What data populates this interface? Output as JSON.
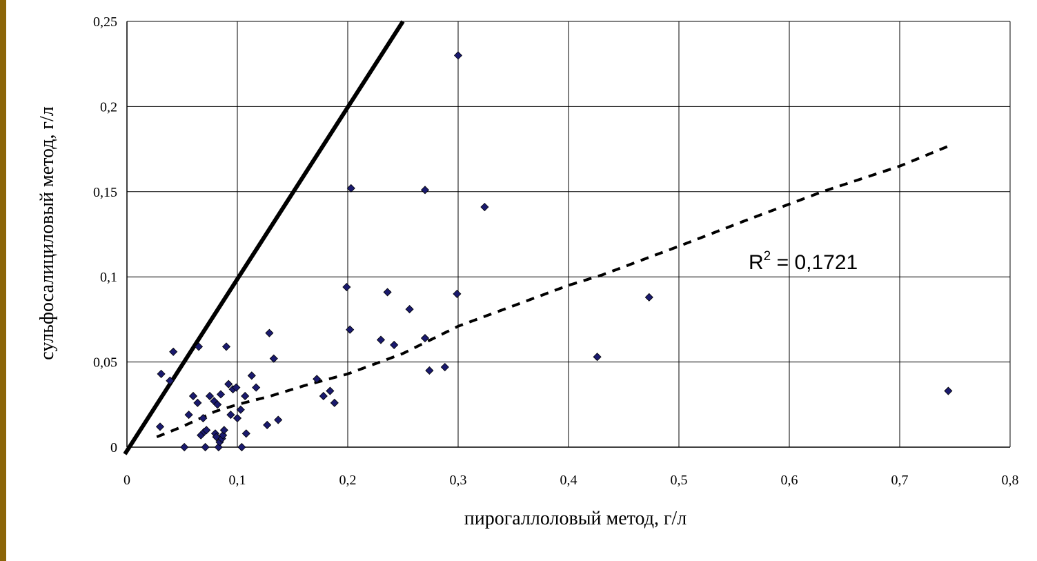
{
  "chart_data": {
    "type": "scatter",
    "title": "",
    "xlabel": "пирогаллоловый метод, г/л",
    "ylabel": "сульфосалициловый метод, г/л",
    "xlim": [
      0,
      0.8
    ],
    "ylim": [
      0,
      0.25
    ],
    "x_ticks": [
      "0",
      "0,1",
      "0,2",
      "0,3",
      "0,4",
      "0,5",
      "0,6",
      "0,7",
      "0,8"
    ],
    "y_ticks": [
      "0",
      "0,05",
      "0,1",
      "0,15",
      "0,2",
      "0,25"
    ],
    "grid": true,
    "marker": "diamond",
    "marker_color": "#1a1a6e",
    "points": [
      [
        0.03,
        0.012
      ],
      [
        0.031,
        0.043
      ],
      [
        0.039,
        0.039
      ],
      [
        0.042,
        0.056
      ],
      [
        0.052,
        0.0
      ],
      [
        0.056,
        0.019
      ],
      [
        0.06,
        0.03
      ],
      [
        0.064,
        0.026
      ],
      [
        0.065,
        0.059
      ],
      [
        0.067,
        0.007
      ],
      [
        0.069,
        0.017
      ],
      [
        0.07,
        0.009
      ],
      [
        0.071,
        0.0
      ],
      [
        0.072,
        0.01
      ],
      [
        0.075,
        0.03
      ],
      [
        0.079,
        0.027
      ],
      [
        0.08,
        0.008
      ],
      [
        0.081,
        0.006
      ],
      [
        0.082,
        0.025
      ],
      [
        0.083,
        0.0
      ],
      [
        0.084,
        0.003
      ],
      [
        0.085,
        0.031
      ],
      [
        0.086,
        0.005
      ],
      [
        0.087,
        0.007
      ],
      [
        0.088,
        0.01
      ],
      [
        0.09,
        0.059
      ],
      [
        0.092,
        0.037
      ],
      [
        0.094,
        0.019
      ],
      [
        0.096,
        0.034
      ],
      [
        0.099,
        0.035
      ],
      [
        0.1,
        0.017
      ],
      [
        0.103,
        0.022
      ],
      [
        0.104,
        0.0
      ],
      [
        0.107,
        0.03
      ],
      [
        0.108,
        0.008
      ],
      [
        0.113,
        0.042
      ],
      [
        0.117,
        0.035
      ],
      [
        0.127,
        0.013
      ],
      [
        0.129,
        0.067
      ],
      [
        0.133,
        0.052
      ],
      [
        0.137,
        0.016
      ],
      [
        0.172,
        0.04
      ],
      [
        0.178,
        0.03
      ],
      [
        0.184,
        0.033
      ],
      [
        0.188,
        0.026
      ],
      [
        0.199,
        0.094
      ],
      [
        0.202,
        0.069
      ],
      [
        0.203,
        0.152
      ],
      [
        0.23,
        0.063
      ],
      [
        0.236,
        0.091
      ],
      [
        0.242,
        0.06
      ],
      [
        0.256,
        0.081
      ],
      [
        0.27,
        0.064
      ],
      [
        0.27,
        0.151
      ],
      [
        0.274,
        0.045
      ],
      [
        0.288,
        0.047
      ],
      [
        0.299,
        0.09
      ],
      [
        0.3,
        0.23
      ],
      [
        0.324,
        0.141
      ],
      [
        0.426,
        0.053
      ],
      [
        0.473,
        0.088
      ],
      [
        0.744,
        0.033
      ]
    ],
    "reference_line": {
      "style": "solid",
      "color": "#000000",
      "x": [
        0,
        0.25
      ],
      "y": [
        0,
        0.25
      ]
    },
    "trendline": {
      "style": "dashed",
      "color": "#000000",
      "x": [
        0.027,
        0.05,
        0.08,
        0.1,
        0.13,
        0.16,
        0.2,
        0.25,
        0.3,
        0.35,
        0.4,
        0.43,
        0.5,
        0.56,
        0.63,
        0.7,
        0.745
      ],
      "y": [
        0.006,
        0.012,
        0.021,
        0.025,
        0.03,
        0.036,
        0.043,
        0.055,
        0.071,
        0.083,
        0.095,
        0.101,
        0.118,
        0.133,
        0.15,
        0.165,
        0.177
      ]
    },
    "annotation": {
      "base": "R",
      "sup": "2",
      "text": " = 0,1721"
    }
  }
}
